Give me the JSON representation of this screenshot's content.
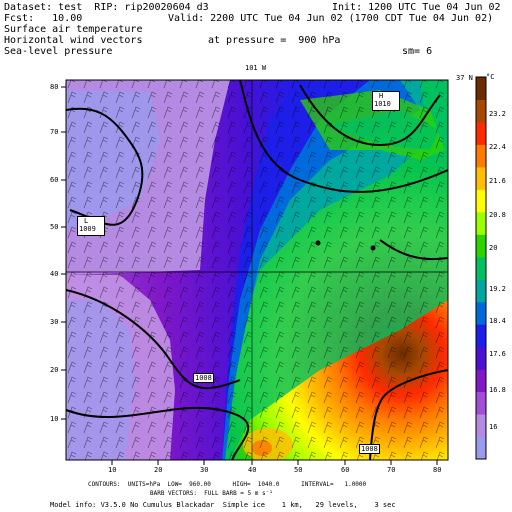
{
  "header": {
    "dataset_line": "Dataset: test  RIP: rip20020604 d3",
    "fcst_line": "Fcst:   10.00",
    "init_line": "Init: 1200 UTC Tue 04 Jun 02",
    "valid_line": "Valid: 2200 UTC Tue 04 Jun 02 (1700 CDT Tue 04 Jun 02)",
    "field1": "Surface air temperature",
    "field2": "Horizontal wind vectors",
    "field3": "Sea-level pressure",
    "pressure_label": "at pressure =  900 hPa",
    "sm_label": "sm= 6"
  },
  "map": {
    "top_lon_label": "101 W",
    "right_lat_label": "37 N",
    "x_ticks": [
      "10",
      "20",
      "30",
      "40",
      "50",
      "60",
      "70",
      "80"
    ],
    "y_ticks": [
      "10",
      "20",
      "30",
      "40",
      "50",
      "60",
      "70",
      "80"
    ],
    "contour_labels": [
      "1010",
      "1009",
      "1008",
      "1008"
    ],
    "pressure_centers": [
      {
        "symbol": "H",
        "value": "1010"
      },
      {
        "symbol": "L",
        "value": "1009"
      }
    ]
  },
  "colorbar": {
    "unit": "°C",
    "labels": [
      "23.2",
      "22.4",
      "21.6",
      "20.8",
      "20",
      "19.2",
      "18.4",
      "17.6",
      "16.8",
      "16"
    ],
    "colors": [
      "#6b2c00",
      "#a84800",
      "#ff2a00",
      "#ff7a00",
      "#ffbe00",
      "#ffff00",
      "#9bff00",
      "#2fd400",
      "#00c060",
      "#00a8a0",
      "#006adc",
      "#1d1ee8",
      "#4a10d4",
      "#8018c8",
      "#a24ed6",
      "#b48ae2",
      "#9a9aee"
    ]
  },
  "footer": {
    "contours_line": "CONTOURS:  UNITS=hPa  LOW=  960.00      HIGH=  1040.0      INTERVAL=   1.0000",
    "barb_line": "BARB VECTORS:  FULL BARB = 5 m s⁻¹",
    "model_line": "Model info: V3.5.0 No Cumulus Blackadar  Simple ice    1 km,   29 levels,    3 sec"
  }
}
